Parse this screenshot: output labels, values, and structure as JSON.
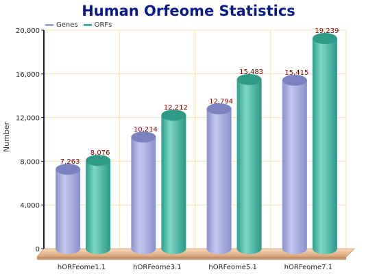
{
  "colors": {
    "title": "#0a1a8c",
    "genes": "#9ea4d8",
    "orfs": "#3fb2a0",
    "grid": "#f5e4b0",
    "axis": "#1a1a4a",
    "label": "#8b0000",
    "floor": "#f0c7a0"
  },
  "chart_data": {
    "type": "bar",
    "title": "Human Orfeome Statistics",
    "xlabel": "",
    "ylabel": "Number",
    "ylim": [
      0,
      20000
    ],
    "yticks": [
      0,
      4000,
      8000,
      12000,
      16000,
      20000
    ],
    "ytick_labels": [
      "0",
      "4,000",
      "8,000",
      "12,000",
      "16,000",
      "20,000"
    ],
    "grid": true,
    "legend_position": "top-left",
    "categories": [
      "hORFeome1.1",
      "hORFeome3.1",
      "hORFeome5.1",
      "hORFeome7.1"
    ],
    "series": [
      {
        "name": "Genes",
        "values": [
          7263,
          10214,
          12794,
          15415
        ],
        "labels": [
          "7,263",
          "10,214",
          "12,794",
          "15,415"
        ]
      },
      {
        "name": "ORFs",
        "values": [
          8076,
          12212,
          15483,
          19239
        ],
        "labels": [
          "8,076",
          "12,212",
          "15,483",
          "19,239"
        ]
      }
    ]
  }
}
